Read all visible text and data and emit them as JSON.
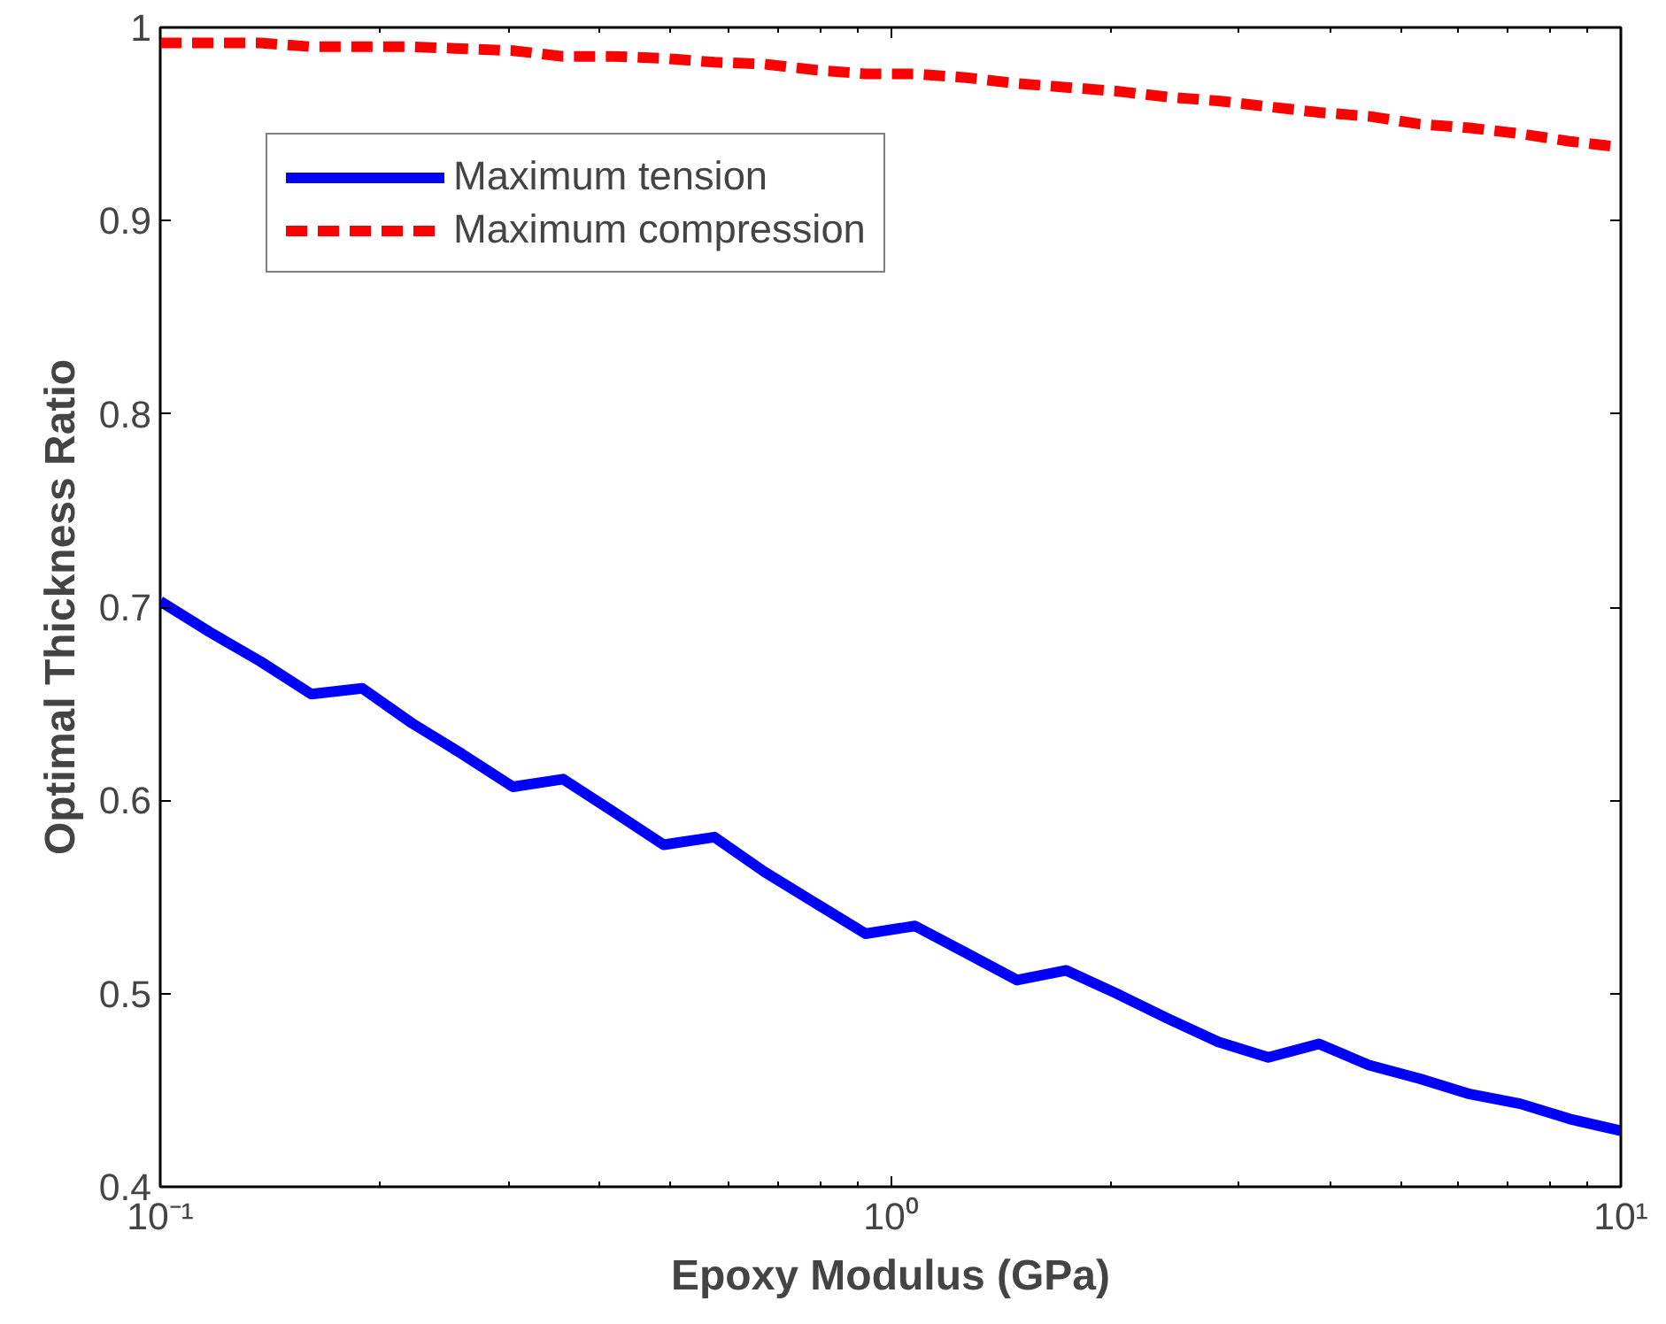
{
  "chart_data": {
    "type": "line",
    "xlabel": "Epoxy Modulus (GPa)",
    "ylabel": "Optimal Thickness Ratio",
    "log": "x",
    "x": [
      0.1,
      0.117,
      0.137,
      0.161,
      0.189,
      0.221,
      0.259,
      0.304,
      0.356,
      0.418,
      0.489,
      0.574,
      0.672,
      0.788,
      0.924,
      1.08,
      1.27,
      1.49,
      1.74,
      2.04,
      2.4,
      2.81,
      3.29,
      3.86,
      4.52,
      5.3,
      6.21,
      7.28,
      8.53,
      10
    ],
    "series": [
      {
        "name": "Maximum tension",
        "color": "#0000ff",
        "line_style": "solid",
        "values": [
          0.703,
          0.687,
          0.672,
          0.655,
          0.658,
          0.64,
          0.624,
          0.607,
          0.611,
          0.594,
          0.577,
          0.581,
          0.563,
          0.547,
          0.531,
          0.535,
          0.521,
          0.507,
          0.512,
          0.5,
          0.487,
          0.475,
          0.467,
          0.474,
          0.463,
          0.456,
          0.448,
          0.443,
          0.435,
          0.429
        ]
      },
      {
        "name": "Maximum compression",
        "color": "#ff0000",
        "line_style": "dashed",
        "values": [
          0.992,
          0.992,
          0.992,
          0.99,
          0.99,
          0.99,
          0.989,
          0.988,
          0.985,
          0.985,
          0.984,
          0.982,
          0.981,
          0.978,
          0.976,
          0.976,
          0.974,
          0.971,
          0.969,
          0.967,
          0.964,
          0.962,
          0.959,
          0.956,
          0.954,
          0.95,
          0.948,
          0.945,
          0.941,
          0.938
        ]
      }
    ],
    "xlim": [
      0.1,
      10
    ],
    "xticks": [
      {
        "value": 0.1,
        "label": "10⁻¹"
      },
      {
        "value": 1,
        "label": "10⁰"
      },
      {
        "value": 10,
        "label": "10¹"
      }
    ],
    "ylim": [
      0.4,
      1
    ],
    "yticks": [
      0.4,
      0.5,
      0.6,
      0.7,
      0.8,
      0.9,
      1
    ],
    "grid": false,
    "legend": "top left",
    "marker": "none"
  }
}
